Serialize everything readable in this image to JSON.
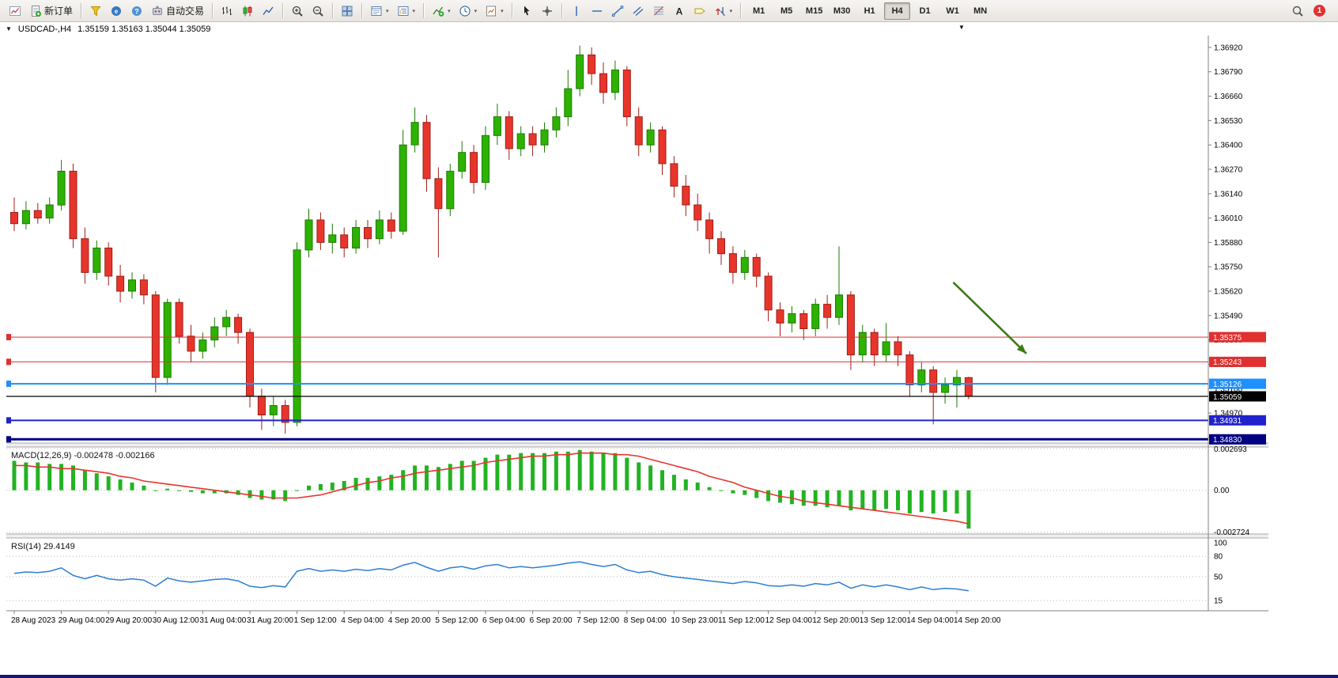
{
  "header": {
    "symbol_period": "USDCAD-,H4",
    "ohlc": "1.35159 1.35163 1.35044 1.35059"
  },
  "toolbar": {
    "groups": [
      {
        "items": [
          {
            "name": "new-chart-button",
            "icon": "new-chart"
          },
          {
            "name": "new-order-button",
            "icon": "new-order",
            "label": "新订单"
          }
        ]
      },
      {
        "items": [
          {
            "name": "market-depth-button",
            "icon": "funnel"
          },
          {
            "name": "community-button",
            "icon": "globe"
          },
          {
            "name": "help-button",
            "icon": "help"
          },
          {
            "name": "algo-trading-button",
            "icon": "algo",
            "label": "自动交易"
          }
        ]
      },
      {
        "items": [
          {
            "name": "bar-chart-button",
            "icon": "bar-chart"
          },
          {
            "name": "candle-chart-button",
            "icon": "candle-chart"
          },
          {
            "name": "line-chart-button",
            "icon": "line-chart"
          }
        ]
      },
      {
        "items": [
          {
            "name": "zoom-in-button",
            "icon": "zoom-in"
          },
          {
            "name": "zoom-out-button",
            "icon": "zoom-out"
          }
        ]
      },
      {
        "items": [
          {
            "name": "tile-windows-button",
            "icon": "tile"
          }
        ]
      },
      {
        "items": [
          {
            "name": "data-window-button",
            "icon": "data-window",
            "dropdown": true
          },
          {
            "name": "navigator-button",
            "icon": "navigator",
            "dropdown": true
          }
        ]
      },
      {
        "items": [
          {
            "name": "add-indicator-button",
            "icon": "add-indicator",
            "dropdown": true
          },
          {
            "name": "period-menu-button",
            "icon": "clock",
            "dropdown": true
          },
          {
            "name": "template-button",
            "icon": "template",
            "dropdown": true
          }
        ]
      },
      {
        "items": [
          {
            "name": "cursor-button",
            "icon": "cursor"
          },
          {
            "name": "crosshair-button",
            "icon": "crosshair"
          }
        ]
      },
      {
        "items": [
          {
            "name": "vertical-line-button",
            "icon": "vline"
          },
          {
            "name": "horizontal-line-button",
            "icon": "hline"
          },
          {
            "name": "trendline-button",
            "icon": "tline"
          },
          {
            "name": "channel-button",
            "icon": "channel"
          },
          {
            "name": "fibonacci-button",
            "icon": "fibo"
          },
          {
            "name": "text-button",
            "icon": "textA"
          },
          {
            "name": "text-label-button",
            "icon": "label"
          },
          {
            "name": "arrows-button",
            "icon": "arrows",
            "dropdown": true
          }
        ]
      },
      {
        "items": [
          {
            "name": "tf-m1-button",
            "tf": "M1"
          },
          {
            "name": "tf-m5-button",
            "tf": "M5"
          },
          {
            "name": "tf-m15-button",
            "tf": "M15"
          },
          {
            "name": "tf-m30-button",
            "tf": "M30"
          },
          {
            "name": "tf-h1-button",
            "tf": "H1"
          },
          {
            "name": "tf-h4-button",
            "tf": "H4",
            "active": true
          },
          {
            "name": "tf-d1-button",
            "tf": "D1"
          },
          {
            "name": "tf-w1-button",
            "tf": "W1"
          },
          {
            "name": "tf-mn-button",
            "tf": "MN"
          }
        ]
      }
    ],
    "right_items": [
      {
        "name": "search-button",
        "icon": "search"
      },
      {
        "name": "notifications-button",
        "icon": "alert",
        "badge": "1"
      }
    ]
  },
  "chart_data": [
    {
      "type": "candlestick",
      "symbol": "USDCAD-",
      "timeframe": "H4",
      "ohlc_quote": {
        "open": "1.35159",
        "high": "1.35163",
        "low": "1.35044",
        "close": "1.35059"
      },
      "ylim": [
        1.3481,
        1.36983
      ],
      "y_ticks": [
        "1.36920",
        "1.36790",
        "1.36660",
        "1.36530",
        "1.36400",
        "1.36270",
        "1.36140",
        "1.36010",
        "1.35880",
        "1.35750",
        "1.35620",
        "1.35490",
        "1.35360",
        "1.35230",
        "1.35100",
        "1.34970",
        "1.34840"
      ],
      "x_labels": [
        "28 Aug 2023",
        "29 Aug 04:00",
        "29 Aug 20:00",
        "30 Aug 12:00",
        "31 Aug 04:00",
        "31 Aug 20:00",
        "1 Sep 12:00",
        "4 Sep 04:00",
        "4 Sep 20:00",
        "5 Sep 12:00",
        "6 Sep 04:00",
        "6 Sep 20:00",
        "7 Sep 12:00",
        "8 Sep 04:00",
        "10 Sep 23:00",
        "11 Sep 12:00",
        "12 Sep 04:00",
        "12 Sep 20:00",
        "13 Sep 12:00",
        "14 Sep 04:00",
        "14 Sep 20:00"
      ],
      "bars_per_label": 4,
      "colors": {
        "up": "#2db200",
        "up_border": "#1b7a00",
        "down": "#e8352c",
        "down_border": "#9c1f17"
      },
      "candles": [
        [
          1.3604,
          1.3612,
          1.3594,
          1.3598
        ],
        [
          1.3598,
          1.361,
          1.3595,
          1.3605
        ],
        [
          1.3605,
          1.3609,
          1.3598,
          1.3601
        ],
        [
          1.3601,
          1.3612,
          1.3598,
          1.3608
        ],
        [
          1.3608,
          1.3632,
          1.3605,
          1.3626
        ],
        [
          1.3626,
          1.363,
          1.3585,
          1.359
        ],
        [
          1.359,
          1.3596,
          1.3566,
          1.3572
        ],
        [
          1.3572,
          1.3589,
          1.3568,
          1.3585
        ],
        [
          1.3585,
          1.3588,
          1.3565,
          1.357
        ],
        [
          1.357,
          1.3576,
          1.3556,
          1.3562
        ],
        [
          1.3562,
          1.3572,
          1.3558,
          1.3568
        ],
        [
          1.3568,
          1.3571,
          1.3555,
          1.356
        ],
        [
          1.356,
          1.3562,
          1.3508,
          1.3516
        ],
        [
          1.3516,
          1.3558,
          1.3512,
          1.3556
        ],
        [
          1.3556,
          1.3558,
          1.3534,
          1.3538
        ],
        [
          1.3538,
          1.3544,
          1.3524,
          1.353
        ],
        [
          1.353,
          1.354,
          1.3526,
          1.3536
        ],
        [
          1.3536,
          1.3548,
          1.3532,
          1.3543
        ],
        [
          1.3543,
          1.3552,
          1.3538,
          1.3548
        ],
        [
          1.3548,
          1.355,
          1.3534,
          1.354
        ],
        [
          1.354,
          1.3542,
          1.35,
          1.3506
        ],
        [
          1.3506,
          1.351,
          1.3488,
          1.3496
        ],
        [
          1.3496,
          1.3506,
          1.349,
          1.3501
        ],
        [
          1.3501,
          1.3504,
          1.3486,
          1.3492
        ],
        [
          1.3492,
          1.3588,
          1.349,
          1.3584
        ],
        [
          1.3584,
          1.3606,
          1.358,
          1.36
        ],
        [
          1.36,
          1.3604,
          1.3584,
          1.3588
        ],
        [
          1.3588,
          1.3598,
          1.3582,
          1.3592
        ],
        [
          1.3592,
          1.3596,
          1.358,
          1.3585
        ],
        [
          1.3585,
          1.36,
          1.3582,
          1.3596
        ],
        [
          1.3596,
          1.36,
          1.3585,
          1.359
        ],
        [
          1.359,
          1.3605,
          1.3587,
          1.36
        ],
        [
          1.36,
          1.3604,
          1.359,
          1.3594
        ],
        [
          1.3594,
          1.3648,
          1.3592,
          1.364
        ],
        [
          1.364,
          1.366,
          1.3636,
          1.3652
        ],
        [
          1.3652,
          1.3656,
          1.3615,
          1.3622
        ],
        [
          1.3622,
          1.3628,
          1.358,
          1.3606
        ],
        [
          1.3606,
          1.363,
          1.3602,
          1.3626
        ],
        [
          1.3626,
          1.3642,
          1.3622,
          1.3636
        ],
        [
          1.3636,
          1.364,
          1.3614,
          1.362
        ],
        [
          1.362,
          1.365,
          1.3616,
          1.3645
        ],
        [
          1.3645,
          1.3662,
          1.364,
          1.3655
        ],
        [
          1.3655,
          1.3658,
          1.3632,
          1.3638
        ],
        [
          1.3638,
          1.365,
          1.3634,
          1.3646
        ],
        [
          1.3646,
          1.365,
          1.3634,
          1.364
        ],
        [
          1.364,
          1.3652,
          1.3636,
          1.3648
        ],
        [
          1.3648,
          1.366,
          1.3644,
          1.3655
        ],
        [
          1.3655,
          1.368,
          1.365,
          1.367
        ],
        [
          1.367,
          1.3693,
          1.3666,
          1.3688
        ],
        [
          1.3688,
          1.3692,
          1.3672,
          1.3678
        ],
        [
          1.3678,
          1.3684,
          1.3662,
          1.3668
        ],
        [
          1.3668,
          1.3685,
          1.3664,
          1.368
        ],
        [
          1.368,
          1.3682,
          1.365,
          1.3655
        ],
        [
          1.3655,
          1.366,
          1.3634,
          1.364
        ],
        [
          1.364,
          1.3652,
          1.3636,
          1.3648
        ],
        [
          1.3648,
          1.365,
          1.3624,
          1.363
        ],
        [
          1.363,
          1.3634,
          1.3612,
          1.3618
        ],
        [
          1.3618,
          1.3624,
          1.3602,
          1.3608
        ],
        [
          1.3608,
          1.3614,
          1.3594,
          1.36
        ],
        [
          1.36,
          1.3604,
          1.3582,
          1.359
        ],
        [
          1.359,
          1.3594,
          1.3576,
          1.3582
        ],
        [
          1.3582,
          1.3586,
          1.3566,
          1.3572
        ],
        [
          1.3572,
          1.3584,
          1.3568,
          1.358
        ],
        [
          1.358,
          1.3582,
          1.3564,
          1.357
        ],
        [
          1.357,
          1.3572,
          1.3546,
          1.3552
        ],
        [
          1.3552,
          1.3556,
          1.3538,
          1.3545
        ],
        [
          1.3545,
          1.3554,
          1.354,
          1.355
        ],
        [
          1.355,
          1.3552,
          1.3536,
          1.3542
        ],
        [
          1.3542,
          1.3558,
          1.3538,
          1.3555
        ],
        [
          1.3555,
          1.356,
          1.3542,
          1.3548
        ],
        [
          1.3548,
          1.3586,
          1.3544,
          1.356
        ],
        [
          1.356,
          1.3562,
          1.352,
          1.3528
        ],
        [
          1.3528,
          1.3544,
          1.3524,
          1.354
        ],
        [
          1.354,
          1.3542,
          1.3522,
          1.3528
        ],
        [
          1.3528,
          1.3545,
          1.3524,
          1.3535
        ],
        [
          1.3535,
          1.3538,
          1.3522,
          1.3528
        ],
        [
          1.3528,
          1.353,
          1.3506,
          1.3512
        ],
        [
          1.3512,
          1.3524,
          1.3508,
          1.352
        ],
        [
          1.352,
          1.3522,
          1.3491,
          1.3508
        ],
        [
          1.3508,
          1.3516,
          1.3502,
          1.3512
        ],
        [
          1.3512,
          1.352,
          1.35,
          1.3516
        ],
        [
          1.35159,
          1.35163,
          1.35044,
          1.35059
        ]
      ],
      "h_lines": [
        {
          "price": 1.35375,
          "label": "1.35375",
          "color": "#e03030",
          "width": 1
        },
        {
          "price": 1.35243,
          "label": "1.35243",
          "color": "#e03030",
          "width": 1
        },
        {
          "price": 1.35126,
          "label": "1.35126",
          "color": "#1e90ff",
          "width": 2
        },
        {
          "price": 1.34931,
          "label": "1.34931",
          "color": "#2222cc",
          "width": 2
        },
        {
          "price": 1.3483,
          "label": "1.34830",
          "color": "#000080",
          "width": 3
        }
      ],
      "bid": {
        "price": 1.35059,
        "label": "1.35059",
        "color": "#000000"
      },
      "arrow": {
        "bar_from": 79.7,
        "price_from": 1.35667,
        "bar_to": 85.9,
        "price_to": 1.35287,
        "color": "#3c7b16"
      }
    },
    {
      "type": "bar",
      "name": "MACD(12,26,9)",
      "values_label": "-0.002478 -0.002166",
      "scale": {
        "max": 0.002693,
        "min": -0.002724
      },
      "axis_labels": [
        "0.002693",
        "0.00",
        "-0.002724"
      ],
      "colors": {
        "histogram": "#22b322",
        "signal": "#e8352c"
      },
      "histogram": [
        0.0019,
        0.0018,
        0.0018,
        0.0017,
        0.0017,
        0.0016,
        0.0013,
        0.0011,
        0.0009,
        0.0007,
        0.0005,
        0.0003,
        0.0,
        0.0001,
        0.0,
        -0.0001,
        -0.0002,
        -0.0002,
        -0.0002,
        -0.0003,
        -0.0005,
        -0.0006,
        -0.0006,
        -0.0007,
        0.0,
        0.0003,
        0.0004,
        0.0005,
        0.0006,
        0.0008,
        0.0008,
        0.0009,
        0.001,
        0.0013,
        0.0016,
        0.0016,
        0.0015,
        0.0017,
        0.0019,
        0.0019,
        0.0021,
        0.0023,
        0.0023,
        0.0024,
        0.0024,
        0.0024,
        0.0025,
        0.0025,
        0.0026,
        0.0025,
        0.0024,
        0.0024,
        0.0021,
        0.0018,
        0.0016,
        0.0013,
        0.001,
        0.0007,
        0.0005,
        0.0002,
        0.0,
        -0.0002,
        -0.0003,
        -0.0005,
        -0.0007,
        -0.0008,
        -0.0009,
        -0.001,
        -0.001,
        -0.0011,
        -0.001,
        -0.0013,
        -0.0012,
        -0.0013,
        -0.0012,
        -0.0013,
        -0.0015,
        -0.0014,
        -0.0015,
        -0.0014,
        -0.0015,
        -0.002478
      ],
      "signal": [
        0.0016,
        0.0016,
        0.0015,
        0.0015,
        0.0014,
        0.0014,
        0.0013,
        0.0012,
        0.0011,
        0.0009,
        0.0008,
        0.0006,
        0.0005,
        0.0004,
        0.0003,
        0.0002,
        0.0001,
        0.0,
        -0.0001,
        -0.0002,
        -0.0003,
        -0.0004,
        -0.0005,
        -0.0005,
        -0.0005,
        -0.0004,
        -0.0003,
        -0.0001,
        0.0001,
        0.0003,
        0.0005,
        0.0006,
        0.0008,
        0.0009,
        0.0011,
        0.0012,
        0.0013,
        0.0014,
        0.0015,
        0.0016,
        0.0018,
        0.0019,
        0.002,
        0.0021,
        0.0022,
        0.0022,
        0.0023,
        0.0023,
        0.0024,
        0.0024,
        0.0024,
        0.0023,
        0.0023,
        0.0022,
        0.002,
        0.0018,
        0.0016,
        0.0014,
        0.0012,
        0.0009,
        0.0007,
        0.0005,
        0.0002,
        0.0,
        -0.0002,
        -0.0004,
        -0.0005,
        -0.0007,
        -0.0008,
        -0.0009,
        -0.001,
        -0.0011,
        -0.0012,
        -0.0013,
        -0.0014,
        -0.0015,
        -0.0016,
        -0.0017,
        -0.0018,
        -0.0019,
        -0.002,
        -0.002166
      ]
    },
    {
      "type": "line",
      "name": "RSI(14)",
      "value_label": "29.4149",
      "range": [
        0,
        100
      ],
      "levels": [
        80,
        50,
        15
      ],
      "axis_labels": [
        "100",
        "80",
        "50",
        "15"
      ],
      "color": "#2d7dd2",
      "values": [
        55,
        57,
        56,
        58,
        63,
        52,
        47,
        52,
        47,
        45,
        47,
        45,
        36,
        48,
        44,
        42,
        44,
        46,
        47,
        44,
        36,
        34,
        37,
        35,
        58,
        62,
        58,
        60,
        58,
        61,
        59,
        62,
        60,
        67,
        71,
        64,
        58,
        63,
        65,
        61,
        66,
        68,
        63,
        65,
        63,
        65,
        67,
        70,
        72,
        68,
        65,
        68,
        60,
        56,
        58,
        53,
        50,
        48,
        46,
        44,
        42,
        40,
        43,
        41,
        37,
        36,
        38,
        36,
        40,
        38,
        42,
        33,
        38,
        35,
        38,
        35,
        31,
        35,
        31,
        33,
        32,
        29.4149
      ]
    }
  ]
}
